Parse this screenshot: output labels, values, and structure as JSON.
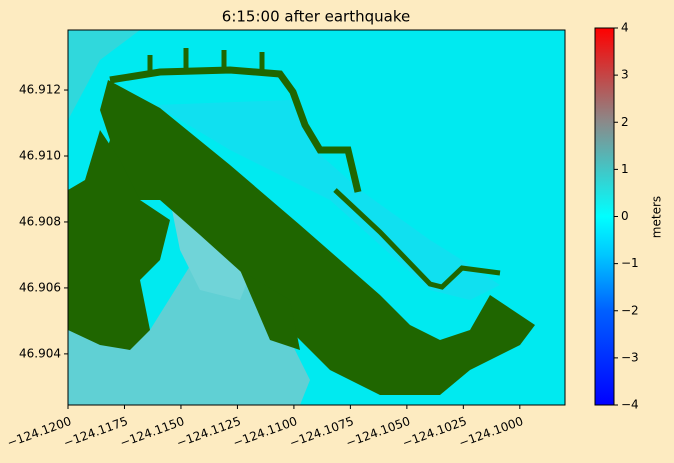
{
  "chart_data": {
    "type": "heatmap",
    "title": "6:15:00 after earthquake",
    "xlim": [
      -124.12,
      -124.098
    ],
    "xticks": [
      {
        "value": -124.12,
        "label": "−124.1200"
      },
      {
        "value": -124.1175,
        "label": "−124.1175"
      },
      {
        "value": -124.115,
        "label": "−124.1150"
      },
      {
        "value": -124.1125,
        "label": "−124.1125"
      },
      {
        "value": -124.11,
        "label": "−124.1100"
      },
      {
        "value": -124.1075,
        "label": "−124.1075"
      },
      {
        "value": -124.105,
        "label": "−124.1050"
      },
      {
        "value": -124.1025,
        "label": "−124.1025"
      },
      {
        "value": -124.1,
        "label": "−124.1000"
      }
    ],
    "ylim": [
      46.90245,
      46.91382
    ],
    "yticks": [
      46.904,
      46.906,
      46.908,
      {
        "value": 46.91,
        "label": "46.910"
      },
      46.912
    ],
    "colorbar_label": "meters",
    "clim": [
      -4,
      4
    ],
    "cticks": [
      {
        "value": -4,
        "label": "−4"
      },
      {
        "value": -3,
        "label": "−3"
      },
      {
        "value": -2,
        "label": "−2"
      },
      {
        "value": -1,
        "label": "−1"
      },
      0,
      1,
      2,
      3,
      4
    ]
  }
}
